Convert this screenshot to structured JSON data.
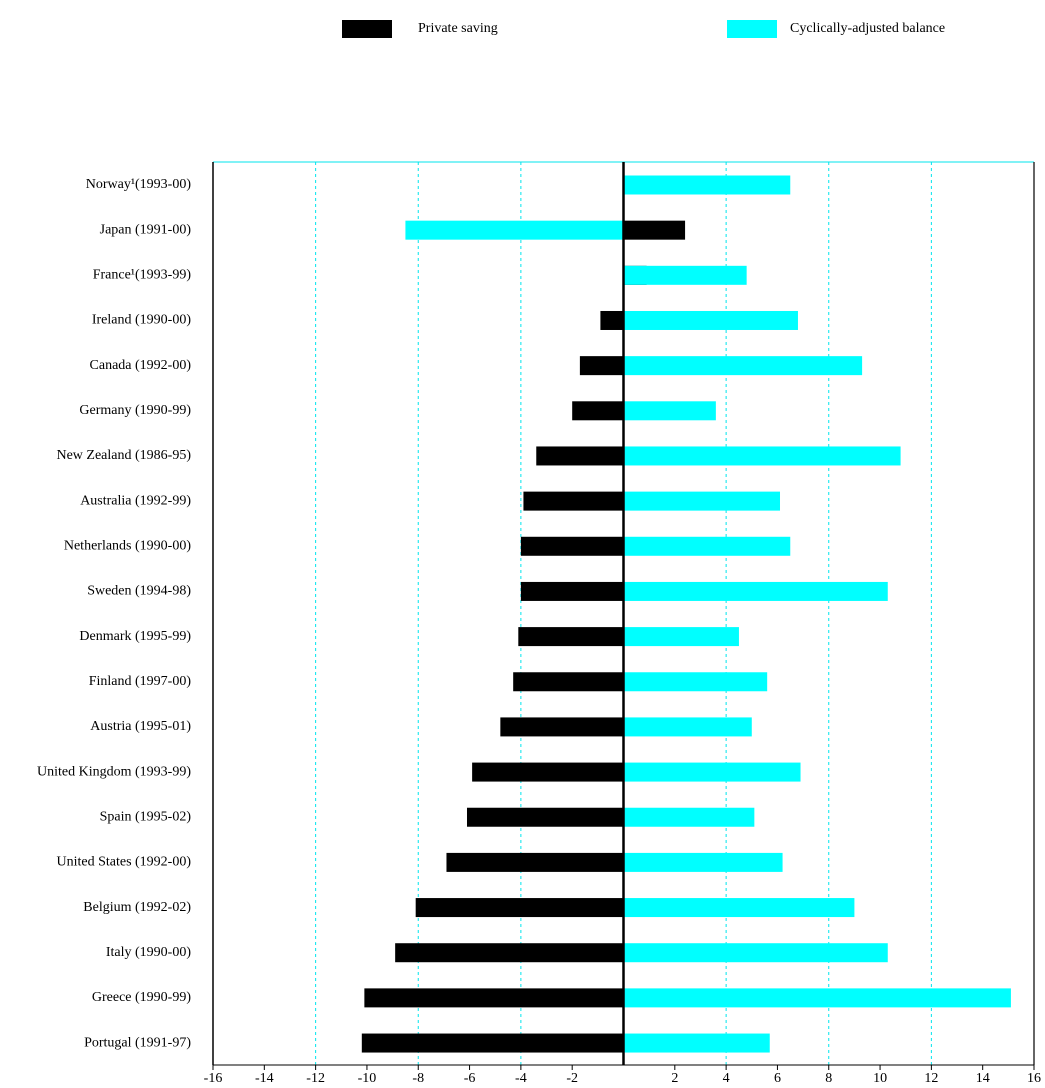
{
  "chart_data": {
    "type": "hbar",
    "categories": [
      "Norway¹(1993-00)",
      "Japan (1991-00)",
      "France¹(1993-99)",
      "Ireland (1990-00)",
      "Canada (1992-00)",
      "Germany (1990-99)",
      "New Zealand (1986-95)",
      "Australia (1992-99)",
      "Netherlands (1990-00)",
      "Sweden (1994-98)",
      "Denmark (1995-99)",
      "Finland (1997-00)",
      "Austria (1995-01)",
      "United Kingdom (1993-99)",
      "Spain (1995-02)",
      "United States (1992-00)",
      "Belgium (1992-02)",
      "Italy (1990-00)",
      "Greece (1990-99)",
      "Portugal (1991-97)"
    ],
    "series": [
      {
        "name": "Private saving",
        "color": "#000000",
        "values": [
          null,
          2.4,
          0.9,
          -0.9,
          -1.7,
          -2.0,
          -3.4,
          -3.9,
          -4.0,
          -4.0,
          -4.1,
          -4.3,
          -4.8,
          -5.9,
          -6.1,
          -6.9,
          -8.1,
          -8.9,
          -10.1,
          -10.2
        ]
      },
      {
        "name": "Cyclically-adjusted balance",
        "color": "#00ffff",
        "values": [
          6.5,
          -8.5,
          4.8,
          6.8,
          9.3,
          3.6,
          10.8,
          6.1,
          6.5,
          10.3,
          4.5,
          5.6,
          5.0,
          6.9,
          5.1,
          6.2,
          9.0,
          10.3,
          15.1,
          5.7
        ]
      }
    ],
    "xlim": [
      -16,
      16
    ],
    "xticks": [
      -16,
      -14,
      -12,
      -10,
      -8,
      -6,
      -4,
      -2,
      2,
      4,
      6,
      8,
      10,
      12,
      14,
      16
    ],
    "grid": true
  }
}
